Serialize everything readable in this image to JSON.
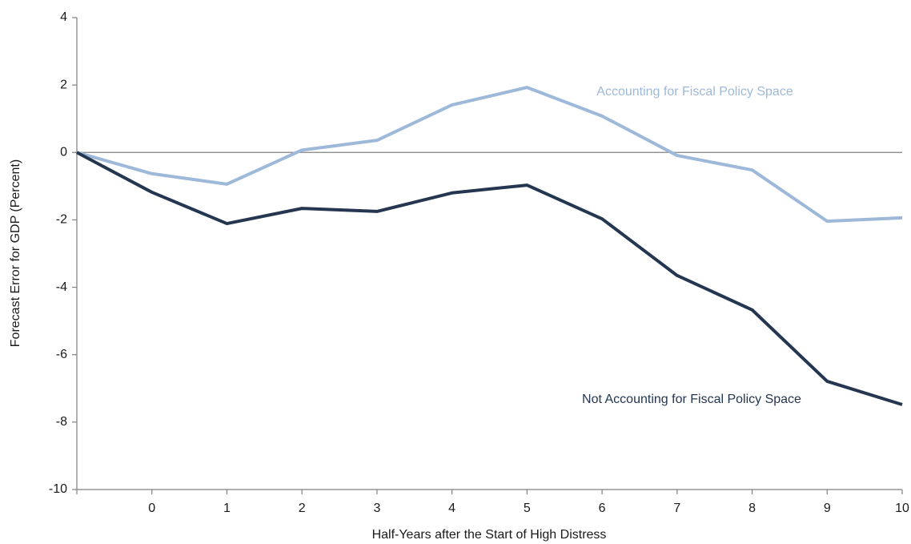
{
  "chart_data": {
    "type": "line",
    "y_label": "Forecast Error for GDP (Percent)",
    "x_label": "Half-Years after the Start of High Distress",
    "categories": [
      null,
      "0",
      "1",
      "2",
      "3",
      "4",
      "5",
      "6",
      "7",
      "8",
      "9",
      "10"
    ],
    "series": [
      {
        "name": "Accounting for Fiscal Policy Space",
        "color": "#9db8d9",
        "values": [
          0,
          -0.63,
          -0.94,
          0.07,
          0.36,
          1.41,
          1.93,
          1.08,
          -0.09,
          -0.52,
          -2.04,
          -1.94
        ]
      },
      {
        "name": "Not Accounting for Fiscal Policy Space",
        "color": "#243650",
        "values": [
          0,
          -1.18,
          -2.11,
          -1.66,
          -1.75,
          -1.2,
          -0.97,
          -1.97,
          -3.65,
          -4.67,
          -6.79,
          -7.48
        ]
      }
    ],
    "ylim": [
      -10,
      4
    ],
    "yticks": [
      -10,
      -8,
      -6,
      -4,
      -2,
      0,
      2,
      4
    ]
  }
}
